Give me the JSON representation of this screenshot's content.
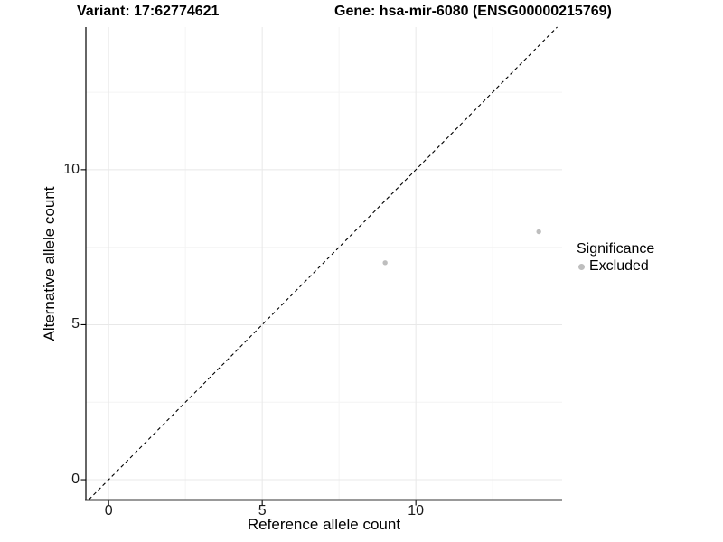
{
  "header": {
    "variant_title": "Variant: 17:62774621",
    "gene_title": "Gene: hsa-mir-6080 (ENSG00000215769)"
  },
  "legend": {
    "title": "Significance",
    "items": [
      {
        "label": "Excluded",
        "color": "#bebebe"
      }
    ]
  },
  "chart_data": {
    "type": "scatter",
    "xlabel": "Reference allele count",
    "ylabel": "Alternative allele count",
    "xlim": [
      -0.74,
      14.76
    ],
    "ylim": [
      -0.64,
      14.6
    ],
    "x_major_ticks": [
      0,
      5,
      10
    ],
    "y_major_ticks": [
      0,
      5,
      10
    ],
    "x_minor_ticks": [
      2.5,
      7.5,
      12.5
    ],
    "y_minor_ticks": [
      2.5,
      7.5,
      12.5
    ],
    "grid": true,
    "legend_position": "right",
    "series": [
      {
        "name": "Excluded",
        "color": "#bebebe",
        "points": [
          {
            "x": 9,
            "y": 7
          },
          {
            "x": 14,
            "y": 8
          }
        ]
      }
    ],
    "reference_line": {
      "slope": 1,
      "intercept": 0,
      "style": "dashed",
      "color": "#000000"
    }
  }
}
